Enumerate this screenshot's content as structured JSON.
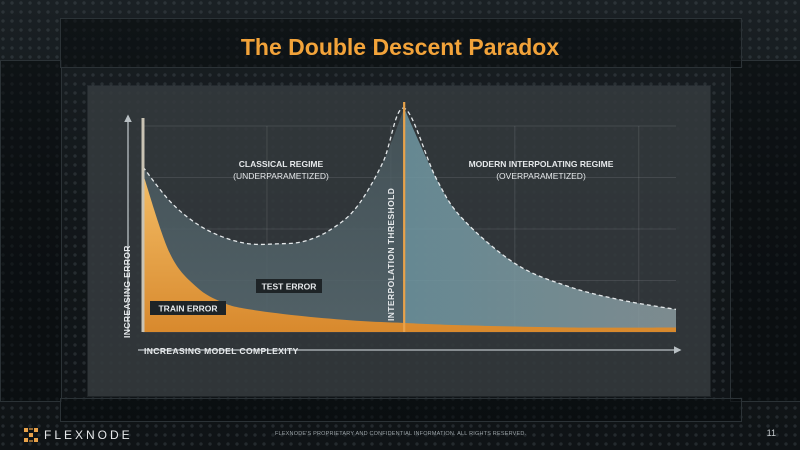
{
  "title": "The Double Descent Paradox",
  "chart_data": {
    "type": "area",
    "xlabel": "INCREASING MODEL COMPLEXITY",
    "ylabel": "INCREASING ERROR",
    "threshold_label": "INTERPOLATION THRESHOLD",
    "threshold_x": 0.49,
    "xlim": [
      0,
      1
    ],
    "ylim": [
      0,
      1
    ],
    "grid": true,
    "regions": [
      {
        "name": "CLASSICAL REGIME",
        "subtitle": "(UNDERPARAMETIZED)"
      },
      {
        "name": "MODERN INTERPOLATING REGIME",
        "subtitle": "(OVERPARAMETIZED)"
      }
    ],
    "series": [
      {
        "name": "TEST ERROR",
        "color": "#7aa3ae",
        "x": [
          0,
          0.05,
          0.1,
          0.15,
          0.2,
          0.25,
          0.3,
          0.35,
          0.4,
          0.45,
          0.49,
          0.55,
          0.6,
          0.7,
          0.8,
          0.9,
          1.0
        ],
        "y": [
          0.73,
          0.58,
          0.48,
          0.42,
          0.39,
          0.39,
          0.4,
          0.45,
          0.55,
          0.75,
          0.99,
          0.68,
          0.5,
          0.3,
          0.2,
          0.14,
          0.1
        ]
      },
      {
        "name": "TRAIN ERROR",
        "color": "#e8a24a",
        "x": [
          0,
          0.05,
          0.1,
          0.15,
          0.2,
          0.3,
          0.4,
          0.49,
          0.6,
          0.8,
          1.0
        ],
        "y": [
          0.7,
          0.35,
          0.2,
          0.13,
          0.1,
          0.07,
          0.05,
          0.04,
          0.03,
          0.02,
          0.02
        ]
      }
    ]
  },
  "footer": {
    "brand": "FLEXNODE",
    "note": "FLEXNODE'S PROPRIETARY AND CONFIDENTIAL INFORMATION. ALL RIGHTS RESERVED.",
    "page": "11"
  }
}
